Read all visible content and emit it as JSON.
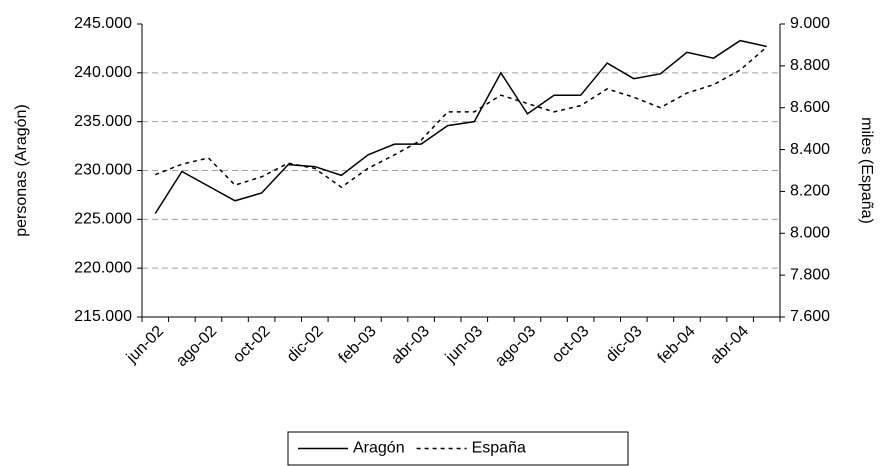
{
  "chart_data": {
    "type": "line",
    "categories": [
      "jun-02",
      null,
      "ago-02",
      null,
      "oct-02",
      null,
      "dic-02",
      null,
      "feb-03",
      null,
      "abr-03",
      null,
      "jun-03",
      null,
      "ago-03",
      null,
      "oct-03",
      null,
      "dic-03",
      null,
      "feb-04",
      null,
      "abr-04",
      null
    ],
    "series": [
      {
        "name": "Aragón",
        "color": "#000000",
        "dash": "solid",
        "values": [
          225600,
          229900,
          228400,
          226900,
          227700,
          230600,
          230400,
          229500,
          231600,
          232700,
          232700,
          234600,
          235000,
          240000,
          235800,
          237700,
          237700,
          241000,
          239400,
          239900,
          242100,
          241500,
          243300,
          242700
        ]
      },
      {
        "name": "España",
        "color": "#000000",
        "dash": "dotted",
        "axis": "y2",
        "values": [
          8280,
          8330,
          8360,
          8230,
          8270,
          8335,
          8310,
          8220,
          8310,
          8375,
          8445,
          8580,
          8580,
          8660,
          8620,
          8580,
          8610,
          8690,
          8650,
          8600,
          8670,
          8710,
          8780,
          8890
        ]
      }
    ],
    "ylabel": "personas (Aragón)",
    "y2label": "miles (España)",
    "ylim": [
      215000,
      245000
    ],
    "yticks": [
      {
        "value": 215000,
        "label": "215.000"
      },
      {
        "value": 220000,
        "label": "220.000"
      },
      {
        "value": 225000,
        "label": "225.000"
      },
      {
        "value": 230000,
        "label": "230.000"
      },
      {
        "value": 235000,
        "label": "235.000"
      },
      {
        "value": 240000,
        "label": "240.000"
      },
      {
        "value": 245000,
        "label": "245.000"
      }
    ],
    "y2lim": [
      7600,
      9000
    ],
    "y2ticks": [
      {
        "value": 7600,
        "label": "7.600"
      },
      {
        "value": 7800,
        "label": "7.800"
      },
      {
        "value": 8000,
        "label": "8.000"
      },
      {
        "value": 8200,
        "label": "8.200"
      },
      {
        "value": 8400,
        "label": "8.400"
      },
      {
        "value": 8600,
        "label": "8.600"
      },
      {
        "value": 8800,
        "label": "8.800"
      },
      {
        "value": 9000,
        "label": "9.000"
      }
    ],
    "grid": true,
    "legend": "bottom"
  }
}
